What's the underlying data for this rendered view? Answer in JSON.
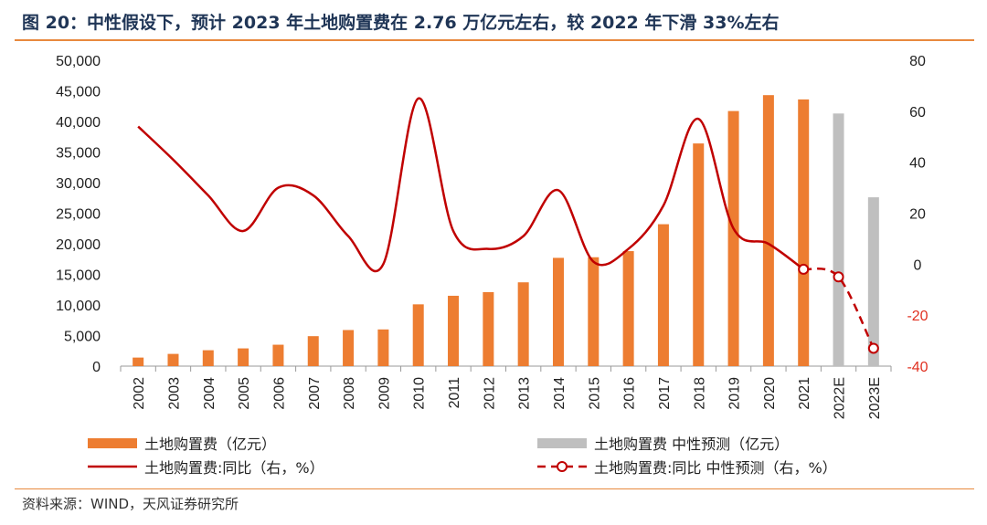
{
  "title": "图 20：中性假设下，预计 2023 年土地购置费在 2.76 万亿元左右，较 2022 年下滑 33%左右",
  "source": "资料来源：WIND，天风证券研究所",
  "colors": {
    "bar": "#ed7d31",
    "bar_forecast": "#bfbfbf",
    "line": "#c00000",
    "title": "#1f3556",
    "rule": "#e8893e",
    "right_negative": "#e03020"
  },
  "chart_data": {
    "type": "bar",
    "categories": [
      "2002",
      "2003",
      "2004",
      "2005",
      "2006",
      "2007",
      "2008",
      "2009",
      "2010",
      "2011",
      "2012",
      "2013",
      "2014",
      "2015",
      "2016",
      "2017",
      "2018",
      "2019",
      "2020",
      "2021",
      "2022E",
      "2023E"
    ],
    "series": [
      {
        "name": "土地购置费（亿元）",
        "axis": "left",
        "kind": "bar",
        "values": [
          1400,
          2000,
          2600,
          2900,
          3500,
          4900,
          5900,
          6000,
          10100,
          11500,
          12100,
          13700,
          17700,
          17800,
          18800,
          23200,
          36400,
          41700,
          44300,
          43600,
          null,
          null
        ]
      },
      {
        "name": "土地购置费 中性预测（亿元）",
        "axis": "left",
        "kind": "bar",
        "values": [
          null,
          null,
          null,
          null,
          null,
          null,
          null,
          null,
          null,
          null,
          null,
          null,
          null,
          null,
          null,
          null,
          null,
          null,
          null,
          null,
          41300,
          27600
        ]
      },
      {
        "name": "土地购置费:同比（右，%）",
        "axis": "right",
        "kind": "line",
        "values": [
          54,
          41,
          27,
          13,
          30,
          27,
          11,
          0,
          65,
          13,
          6,
          11,
          29,
          1,
          6,
          23,
          57,
          14,
          8,
          -2,
          null,
          null
        ]
      },
      {
        "name": "土地购置费:同比 中性预测（右，%）",
        "axis": "right",
        "kind": "line-dashed",
        "values": [
          null,
          null,
          null,
          null,
          null,
          null,
          null,
          null,
          null,
          null,
          null,
          null,
          null,
          null,
          null,
          null,
          null,
          null,
          null,
          -2,
          -5,
          -33
        ]
      }
    ],
    "y_left": {
      "min": 0,
      "max": 50000,
      "ticks": [
        0,
        5000,
        10000,
        15000,
        20000,
        25000,
        30000,
        35000,
        40000,
        45000,
        50000
      ],
      "tick_labels": [
        "0",
        "5,000",
        "10,000",
        "15,000",
        "20,000",
        "25,000",
        "30,000",
        "35,000",
        "40,000",
        "45,000",
        "50,000"
      ]
    },
    "y_right": {
      "min": -40,
      "max": 80,
      "ticks": [
        -40,
        -20,
        0,
        20,
        40,
        60,
        80
      ],
      "tick_labels": [
        "-40",
        "-20",
        "0",
        "20",
        "40",
        "60",
        "80"
      ]
    },
    "legend": [
      {
        "label": "土地购置费（亿元）",
        "symbol": "bar"
      },
      {
        "label": "土地购置费 中性预测（亿元）",
        "symbol": "bar-gray"
      },
      {
        "label": "土地购置费:同比（右，%）",
        "symbol": "line"
      },
      {
        "label": "土地购置费:同比 中性预测（右，%）",
        "symbol": "line-dashed-marker"
      }
    ],
    "legend_position": "bottom"
  }
}
